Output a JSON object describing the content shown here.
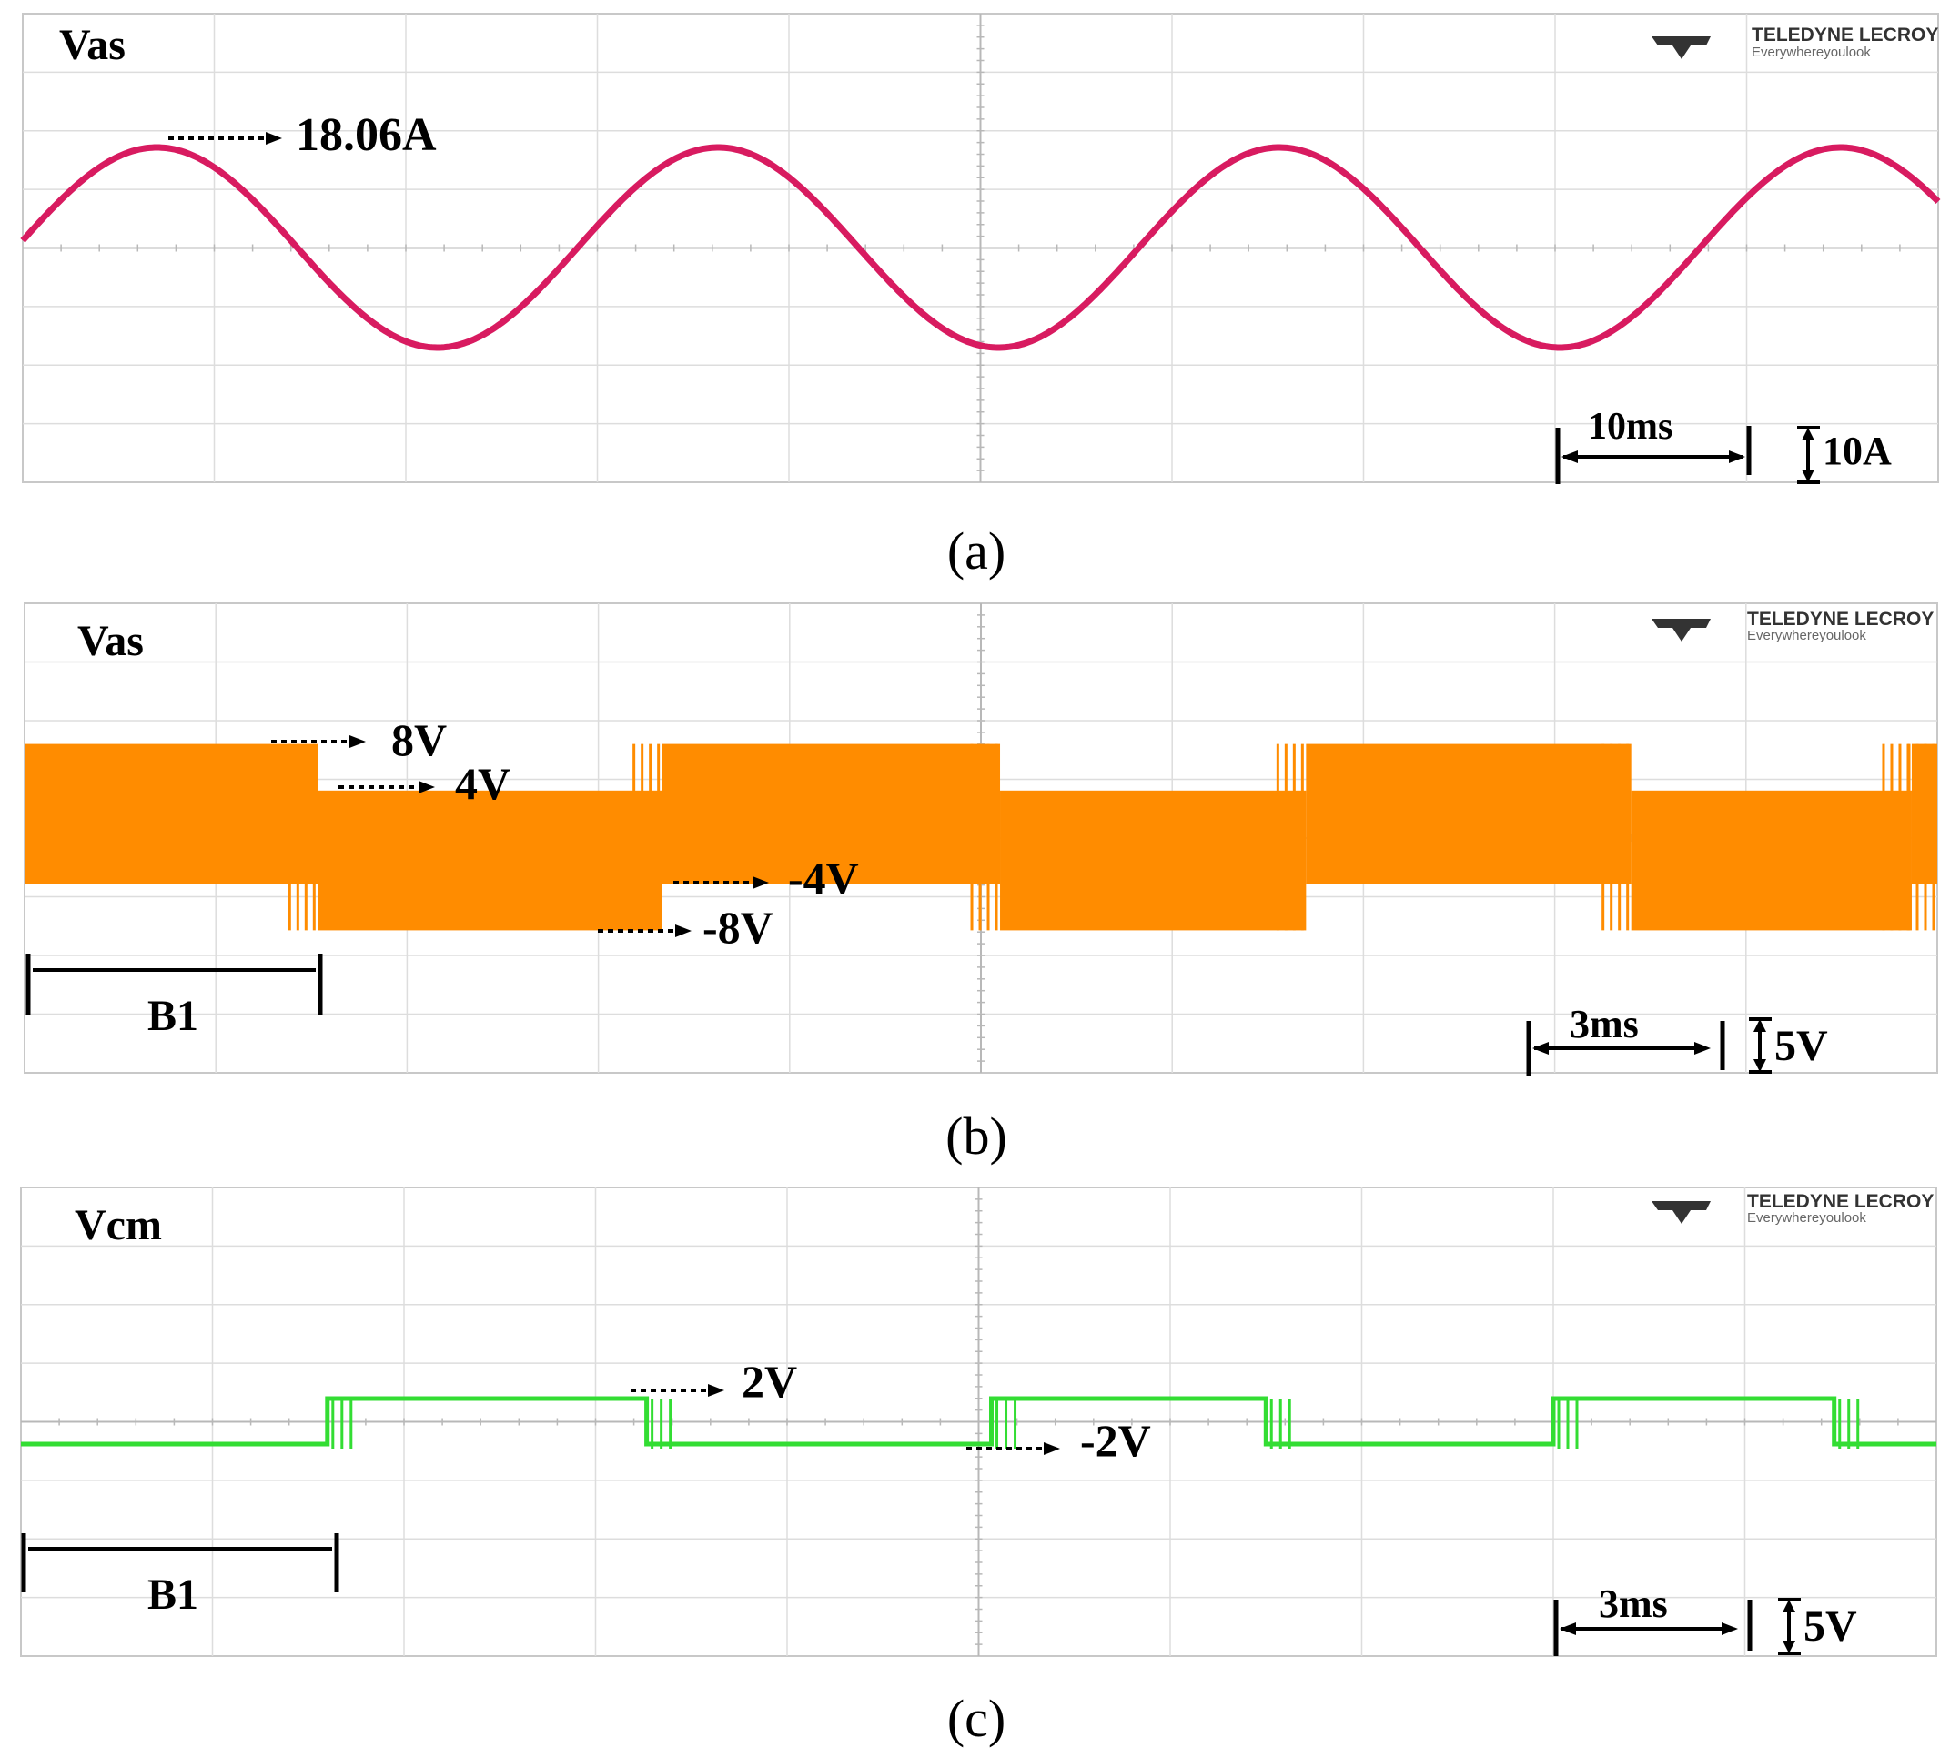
{
  "chart_data": [
    {
      "type": "line",
      "panel": "a",
      "caption": "(a)",
      "title": "Vas",
      "brand": "TELEDYNE LECROY",
      "tagline": "Everywhereyoulook",
      "color": "#d81b60",
      "time_per_div": "10ms",
      "amplitude_per_div": "10A",
      "peak_annotation": "18.06A",
      "series": [
        {
          "waveform": "sine",
          "amplitude_A": 18.06,
          "period_ms": 29.3,
          "x_start_ms": 0,
          "x_end_ms": 100
        }
      ]
    },
    {
      "type": "line",
      "panel": "b",
      "caption": "(b)",
      "title": "Vas",
      "brand": "TELEDYNE LECROY",
      "tagline": "Everywhereyoulook",
      "color": "#ff8c00",
      "time_per_div": "3ms",
      "amplitude_per_div": "5V",
      "levels": [
        "8V",
        "4V",
        "-4V",
        "-8V"
      ],
      "bracket_label": "B1",
      "series": [
        {
          "waveform": "PWM",
          "segments": [
            {
              "t_start_ms": 0.0,
              "t_end_ms": 4.6,
              "high_V": 8,
              "low_V": -4
            },
            {
              "t_start_ms": 4.6,
              "t_end_ms": 10.0,
              "high_V": 4,
              "low_V": -8
            },
            {
              "t_start_ms": 10.0,
              "t_end_ms": 15.3,
              "high_V": 8,
              "low_V": -4
            },
            {
              "t_start_ms": 15.3,
              "t_end_ms": 20.1,
              "high_V": 4,
              "low_V": -8
            },
            {
              "t_start_ms": 20.1,
              "t_end_ms": 25.2,
              "high_V": 8,
              "low_V": -4
            },
            {
              "t_start_ms": 25.2,
              "t_end_ms": 29.6,
              "high_V": 4,
              "low_V": -8
            },
            {
              "t_start_ms": 29.6,
              "t_end_ms": 30.0,
              "high_V": 8,
              "low_V": -4
            }
          ]
        }
      ]
    },
    {
      "type": "line",
      "panel": "c",
      "caption": "(c)",
      "title": "Vcm",
      "brand": "TELEDYNE LECROY",
      "tagline": "Everywhereyoulook",
      "color": "#33dd33",
      "time_per_div": "3ms",
      "amplitude_per_div": "5V",
      "levels": [
        "2V",
        "-2V"
      ],
      "bracket_label": "B1",
      "series": [
        {
          "waveform": "square",
          "segments": [
            {
              "t_start_ms": 0.0,
              "t_end_ms": 4.8,
              "value_V": -2
            },
            {
              "t_start_ms": 4.8,
              "t_end_ms": 9.8,
              "value_V": 2
            },
            {
              "t_start_ms": 9.8,
              "t_end_ms": 15.2,
              "value_V": -2
            },
            {
              "t_start_ms": 15.2,
              "t_end_ms": 19.5,
              "value_V": 2
            },
            {
              "t_start_ms": 19.5,
              "t_end_ms": 24.0,
              "value_V": -2
            },
            {
              "t_start_ms": 24.0,
              "t_end_ms": 28.4,
              "value_V": 2
            },
            {
              "t_start_ms": 28.4,
              "t_end_ms": 30.0,
              "value_V": -2
            }
          ]
        }
      ]
    }
  ]
}
